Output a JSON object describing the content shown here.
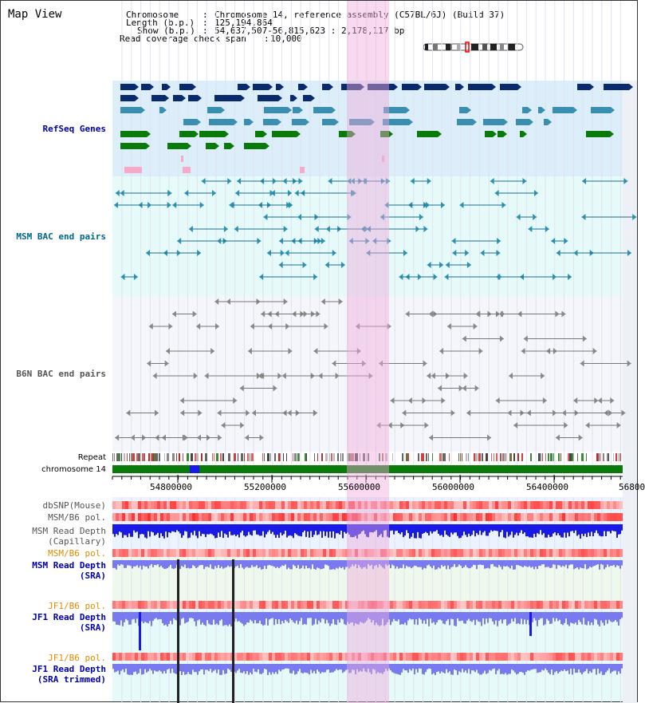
{
  "header": {
    "title": "Map View",
    "chromosome_key": "Chromosome",
    "chromosome_value": "Chromosome 14, reference assembly (C57BL/6J) (Build 37)",
    "length_key": "Length (b.p.)",
    "length_value": "125,194,864",
    "show_key": "Show (b.p.)",
    "show_value": "54,637,507-56,815,623 : 2,178,117 bp",
    "coverage_key": "Read coverage check span",
    "coverage_value": "10,000"
  },
  "tracks": {
    "refseq": "RefSeq Genes",
    "msm_bac": "MSM BAC end pairs",
    "b6n_bac": "B6N BAC end pairs",
    "repeat": "Repeat",
    "chromosome": "chromosome 14"
  },
  "axis": {
    "ticks": [
      "54800000",
      "55200000",
      "55600000",
      "56000000",
      "56400000",
      "56800"
    ]
  },
  "lower_tracks": {
    "dbsnp": "dbSNP(Mouse)",
    "msm_b6_pol_1": "MSM/B6 pol.",
    "msm_depth_cap_1": "MSM Read Depth",
    "msm_depth_cap_2": "(Capillary)",
    "msm_b6_pol_2": "MSM/B6 pol.",
    "msm_depth_sra_1": "MSM Read Depth",
    "msm_depth_sra_2": "(SRA)",
    "jf1_b6_pol_1": "JF1/B6 pol.",
    "jf1_depth_sra_1": "JF1 Read Depth",
    "jf1_depth_sra_2": "(SRA)",
    "jf1_b6_pol_2": "JF1/B6 pol.",
    "jf1_depth_trim_1": "JF1 Read Depth",
    "jf1_depth_trim_2": "(SRA trimmed)"
  },
  "colors": {
    "refseq_bg": "#dceefa",
    "msm_bg": "#e6fafa",
    "highlight": "#f3c7ea",
    "gene_navy": "#0a2a6e",
    "gene_blue": "#3a8fb0",
    "gene_green": "#0a7a0a",
    "depth_blue": "#1a1ae6",
    "label_blue": "#0000aa",
    "label_teal": "#006688",
    "label_orange": "#e08a00"
  }
}
